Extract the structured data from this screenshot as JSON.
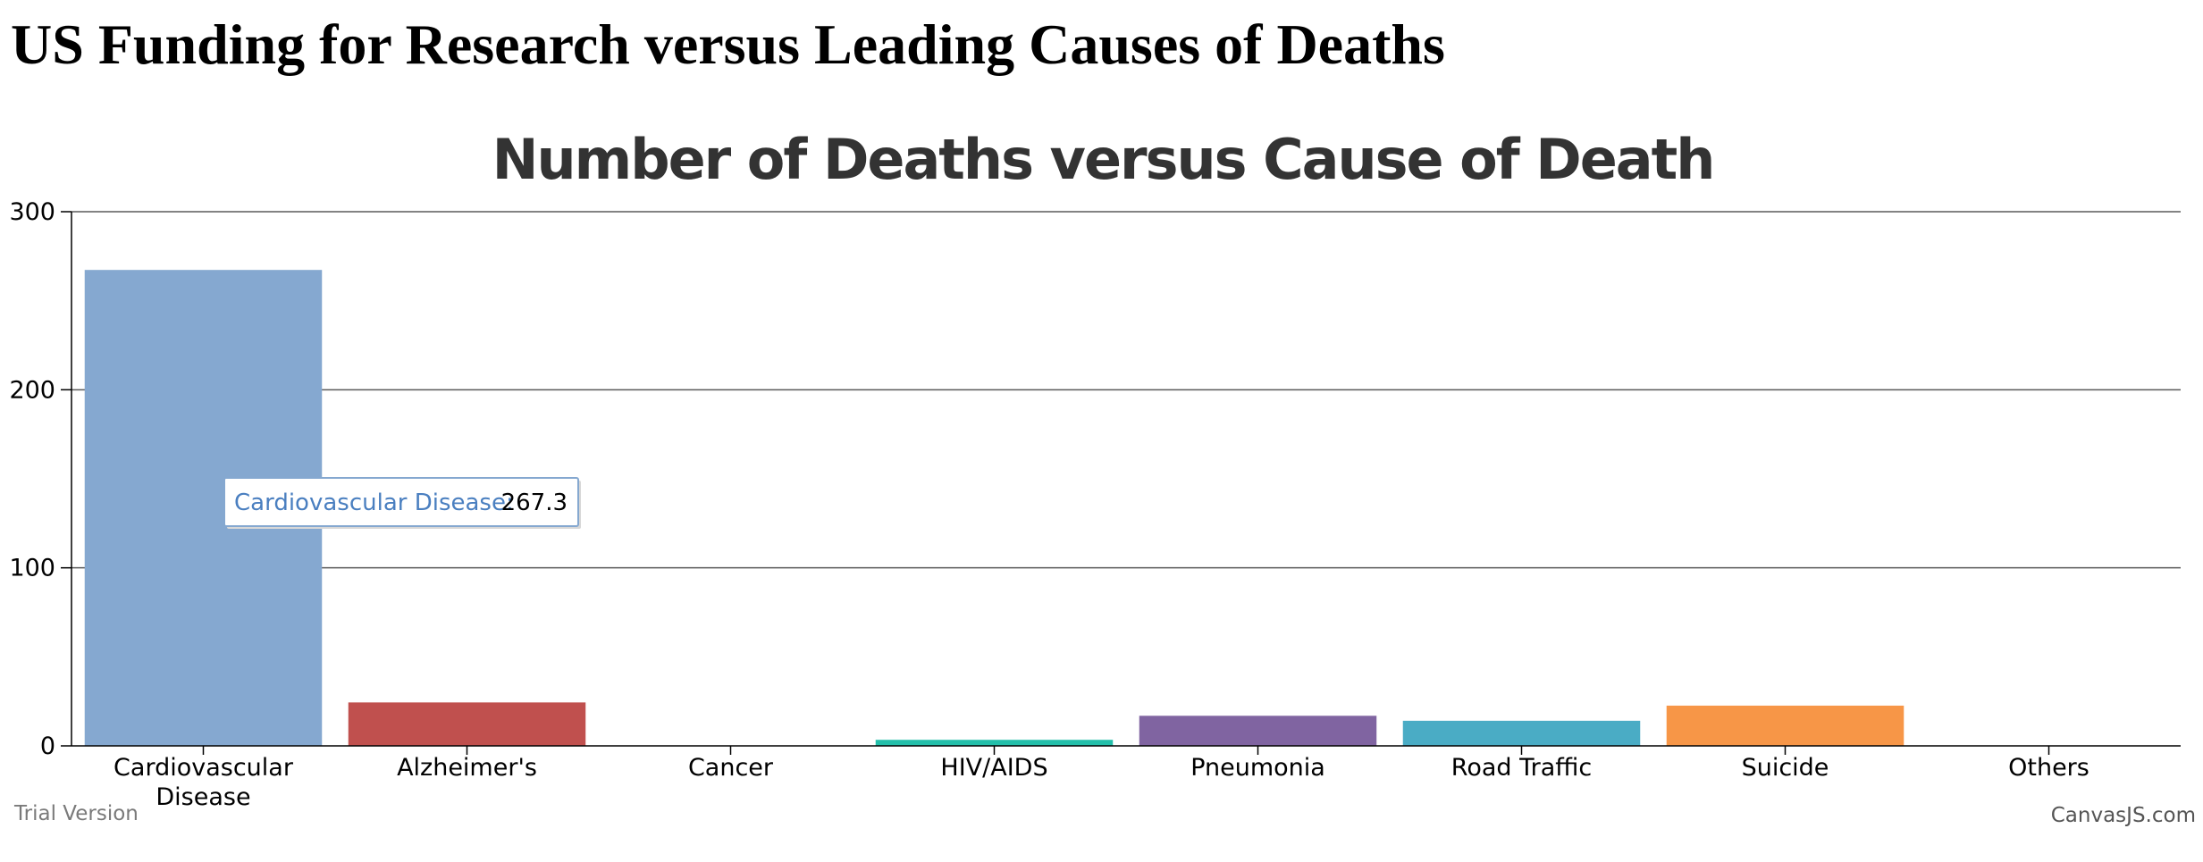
{
  "page": {
    "heading": "US Funding for Research versus Leading Causes of Deaths"
  },
  "chart_data": {
    "type": "bar",
    "title": "Number of Deaths versus Cause of Death",
    "xlabel": "",
    "ylabel": "",
    "ylim": [
      0,
      300
    ],
    "yticks": [
      0,
      100,
      200,
      300
    ],
    "grid": true,
    "categories": [
      "Cardiovascular Disease",
      "Alzheimer's",
      "Cancer",
      "HIV/AIDS",
      "Pneumonia",
      "Road Traffic",
      "Suicide",
      "Others"
    ],
    "values": [
      267.3,
      24.4,
      0,
      3.4,
      16.9,
      14.1,
      22.6,
      0
    ],
    "colors": [
      "#85a8d0",
      "#c0504e",
      "#9bbb58",
      "#23bfaa",
      "#8064a1",
      "#4aacc5",
      "#f79647",
      "#33558b"
    ],
    "tooltip": {
      "category_index": 0,
      "label": "Cardiovascular Disease:",
      "value": "267.3"
    }
  },
  "footer": {
    "watermark": "Trial Version",
    "credits": "CanvasJS.com"
  }
}
